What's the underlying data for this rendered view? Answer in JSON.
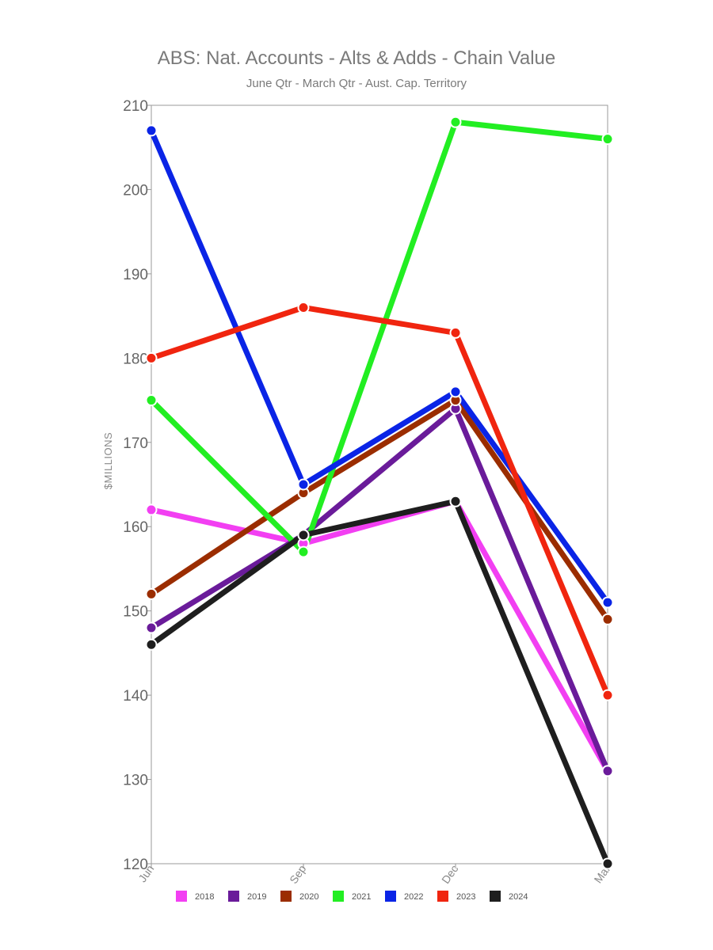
{
  "chart_data": {
    "type": "line",
    "title": "ABS: Nat. Accounts - Alts & Adds - Chain Value",
    "subtitle": "June Qtr - March Qtr - Aust. Cap. Territory",
    "ylabel": "$MILLIONS",
    "xlabel": "",
    "x": [
      "Jun",
      "Sep",
      "Dec",
      "Mar"
    ],
    "ylim": [
      120,
      210
    ],
    "yticks": [
      120,
      130,
      140,
      150,
      160,
      170,
      180,
      190,
      200,
      210
    ],
    "grid": false,
    "legend_position": "bottom",
    "series": [
      {
        "name": "2018",
        "color": "#f23ff2",
        "values": [
          162,
          158,
          163,
          131
        ]
      },
      {
        "name": "2019",
        "color": "#6a1b9a",
        "values": [
          148,
          159,
          174,
          131
        ]
      },
      {
        "name": "2020",
        "color": "#9b2d00",
        "values": [
          152,
          164,
          175,
          149
        ]
      },
      {
        "name": "2021",
        "color": "#22ee22",
        "values": [
          175,
          157,
          208,
          206
        ]
      },
      {
        "name": "2022",
        "color": "#0a24e6",
        "values": [
          207,
          165,
          176,
          151
        ]
      },
      {
        "name": "2023",
        "color": "#f0250f",
        "values": [
          180,
          186,
          183,
          140
        ]
      },
      {
        "name": "2024",
        "color": "#1e1e1e",
        "values": [
          146,
          159,
          163,
          120
        ]
      }
    ]
  }
}
